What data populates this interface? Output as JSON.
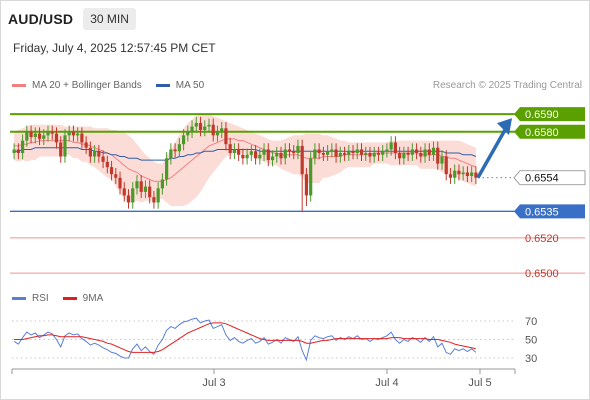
{
  "header": {
    "symbol": "AUD/USD",
    "interval": "30 MIN",
    "datetime": "Friday, July 4, 2025 12:57:45 PM CET"
  },
  "legend": {
    "ma20_label": "MA 20 + Bollinger Bands",
    "ma50_label": "MA 50",
    "ma20_color": "#f08080",
    "ma50_color": "#2f5ea8"
  },
  "copyright": "Research © 2025 Trading Central",
  "rsi_legend": {
    "rsi_label": "RSI",
    "ma9_label": "9MA",
    "rsi_color": "#5b7fd6",
    "ma9_color": "#e02020"
  },
  "colors": {
    "resistance": "#5aa000",
    "support": "#3a6fc7",
    "target": "#f09090",
    "up_candle": "#4a9a2a",
    "down_candle": "#c0392b",
    "bb_fill": "#fbd6d0",
    "arrow": "#2e6bb5"
  },
  "chart_data": [
    {
      "type": "candlestick",
      "title": "AUD/USD",
      "ylim": [
        0.6495,
        0.6598
      ],
      "x_ticks": [
        "Jul 3",
        "Jul 4",
        "Jul 5"
      ],
      "price_levels": [
        {
          "value": "0.6590",
          "price": 0.659,
          "kind": "resistance"
        },
        {
          "value": "0.6580",
          "price": 0.658,
          "kind": "resistance"
        },
        {
          "value": "0.6554",
          "price": 0.6554,
          "kind": "current"
        },
        {
          "value": "0.6535",
          "price": 0.6535,
          "kind": "support"
        },
        {
          "value": "0.6520",
          "price": 0.652,
          "kind": "target"
        },
        {
          "value": "0.6500",
          "price": 0.65,
          "kind": "target"
        }
      ],
      "close": [
        0.657,
        0.6568,
        0.6575,
        0.658,
        0.6577,
        0.6579,
        0.6576,
        0.6578,
        0.658,
        0.6579,
        0.6574,
        0.6566,
        0.6578,
        0.658,
        0.6578,
        0.6579,
        0.6574,
        0.6571,
        0.6566,
        0.6569,
        0.6566,
        0.6563,
        0.656,
        0.6556,
        0.6554,
        0.6548,
        0.6544,
        0.654,
        0.6548,
        0.6552,
        0.6546,
        0.6549,
        0.6543,
        0.654,
        0.6548,
        0.6553,
        0.6565,
        0.657,
        0.6569,
        0.6573,
        0.6578,
        0.658,
        0.6583,
        0.6585,
        0.6581,
        0.6583,
        0.6584,
        0.6578,
        0.658,
        0.6582,
        0.6573,
        0.6568,
        0.657,
        0.6567,
        0.6565,
        0.6567,
        0.6569,
        0.6565,
        0.6567,
        0.657,
        0.6564,
        0.6566,
        0.6568,
        0.6565,
        0.657,
        0.6569,
        0.6568,
        0.6572,
        0.6556,
        0.6544,
        0.6565,
        0.657,
        0.6568,
        0.6567,
        0.6569,
        0.657,
        0.6566,
        0.6568,
        0.6567,
        0.6569,
        0.6568,
        0.657,
        0.6567,
        0.6568,
        0.6566,
        0.6568,
        0.6567,
        0.6569,
        0.657,
        0.6574,
        0.6568,
        0.6565,
        0.6568,
        0.6567,
        0.657,
        0.6568,
        0.6566,
        0.657,
        0.6567,
        0.6571,
        0.6562,
        0.6566,
        0.6556,
        0.6554,
        0.6558,
        0.6556,
        0.6557,
        0.6555,
        0.6557,
        0.6554
      ],
      "ma20": [
        0.6572,
        0.6572,
        0.6573,
        0.6573,
        0.6574,
        0.6574,
        0.6575,
        0.6575,
        0.6575,
        0.6575,
        0.6575,
        0.6575,
        0.6575,
        0.6575,
        0.6574,
        0.6574,
        0.6573,
        0.6573,
        0.6572,
        0.6571,
        0.657,
        0.6569,
        0.6568,
        0.6567,
        0.6565,
        0.6563,
        0.6561,
        0.6559,
        0.6558,
        0.6557,
        0.6555,
        0.6554,
        0.6553,
        0.6552,
        0.6552,
        0.6552,
        0.6553,
        0.6554,
        0.6556,
        0.6558,
        0.656,
        0.6562,
        0.6564,
        0.6566,
        0.6568,
        0.657,
        0.6572,
        0.6573,
        0.6574,
        0.6575,
        0.6576,
        0.6576,
        0.6576,
        0.6575,
        0.6575,
        0.6574,
        0.6573,
        0.6572,
        0.6571,
        0.657,
        0.6569,
        0.6568,
        0.6568,
        0.6567,
        0.6567,
        0.6567,
        0.6567,
        0.6567,
        0.6566,
        0.6565,
        0.6565,
        0.6565,
        0.6565,
        0.6566,
        0.6566,
        0.6566,
        0.6566,
        0.6566,
        0.6567,
        0.6567,
        0.6567,
        0.6567,
        0.6567,
        0.6567,
        0.6567,
        0.6568,
        0.6568,
        0.6568,
        0.6568,
        0.6568,
        0.6568,
        0.6568,
        0.6568,
        0.6568,
        0.6568,
        0.6568,
        0.6567,
        0.6567,
        0.6567,
        0.6567,
        0.6567,
        0.6566,
        0.6566,
        0.6565,
        0.6565,
        0.6564,
        0.6563,
        0.6562,
        0.6561,
        0.656
      ],
      "bb_upper": [
        0.658,
        0.6581,
        0.6582,
        0.6583,
        0.6584,
        0.6584,
        0.6584,
        0.6584,
        0.6584,
        0.6584,
        0.6584,
        0.6584,
        0.6583,
        0.6583,
        0.6583,
        0.6583,
        0.6583,
        0.6583,
        0.6583,
        0.6582,
        0.6582,
        0.6582,
        0.6582,
        0.6581,
        0.6581,
        0.658,
        0.658,
        0.6578,
        0.6576,
        0.6573,
        0.657,
        0.6567,
        0.6565,
        0.6563,
        0.6562,
        0.6562,
        0.6566,
        0.657,
        0.6574,
        0.6578,
        0.6582,
        0.6585,
        0.6587,
        0.6589,
        0.659,
        0.659,
        0.659,
        0.6589,
        0.6588,
        0.6587,
        0.6586,
        0.6585,
        0.6584,
        0.6583,
        0.6582,
        0.6581,
        0.658,
        0.6579,
        0.6578,
        0.6577,
        0.6576,
        0.6575,
        0.6575,
        0.6575,
        0.6576,
        0.6577,
        0.6578,
        0.6578,
        0.6578,
        0.6579,
        0.6579,
        0.6579,
        0.6579,
        0.6578,
        0.6578,
        0.6577,
        0.6576,
        0.6575,
        0.6575,
        0.6574,
        0.6574,
        0.6574,
        0.6574,
        0.6574,
        0.6574,
        0.6574,
        0.6574,
        0.6574,
        0.6574,
        0.6575,
        0.6575,
        0.6575,
        0.6575,
        0.6575,
        0.6575,
        0.6575,
        0.6575,
        0.6575,
        0.6575,
        0.6575,
        0.6575,
        0.6575,
        0.6575,
        0.6575,
        0.6575,
        0.6575,
        0.6574,
        0.6573,
        0.6572,
        0.6571
      ],
      "bb_lower": [
        0.6564,
        0.6563,
        0.6564,
        0.6563,
        0.6564,
        0.6564,
        0.6566,
        0.6566,
        0.6566,
        0.6566,
        0.6566,
        0.6566,
        0.6567,
        0.6567,
        0.6565,
        0.6565,
        0.6563,
        0.6563,
        0.6561,
        0.656,
        0.6558,
        0.6556,
        0.6554,
        0.6553,
        0.6549,
        0.6546,
        0.6542,
        0.654,
        0.654,
        0.6541,
        0.654,
        0.6541,
        0.6541,
        0.6541,
        0.6542,
        0.6542,
        0.654,
        0.6538,
        0.6538,
        0.6538,
        0.6538,
        0.6539,
        0.6541,
        0.6543,
        0.6546,
        0.655,
        0.6554,
        0.6557,
        0.656,
        0.6563,
        0.6566,
        0.6567,
        0.6568,
        0.6567,
        0.6568,
        0.6567,
        0.6566,
        0.6565,
        0.6564,
        0.6563,
        0.6562,
        0.6561,
        0.6561,
        0.6559,
        0.6558,
        0.6557,
        0.6556,
        0.6556,
        0.6554,
        0.6551,
        0.6551,
        0.6551,
        0.6551,
        0.6554,
        0.6554,
        0.6555,
        0.6556,
        0.6557,
        0.6559,
        0.656,
        0.656,
        0.656,
        0.656,
        0.656,
        0.656,
        0.6562,
        0.6562,
        0.6562,
        0.6562,
        0.6561,
        0.6561,
        0.6561,
        0.6561,
        0.6561,
        0.6561,
        0.6561,
        0.6559,
        0.6559,
        0.6559,
        0.6559,
        0.6559,
        0.6557,
        0.6557,
        0.6555,
        0.6555,
        0.6553,
        0.6552,
        0.6551,
        0.655,
        0.6549
      ],
      "ma50": [
        0.6569,
        0.6569,
        0.657,
        0.657,
        0.657,
        0.6571,
        0.6571,
        0.6571,
        0.6571,
        0.6571,
        0.6571,
        0.6571,
        0.6571,
        0.6571,
        0.6571,
        0.6571,
        0.657,
        0.657,
        0.657,
        0.6569,
        0.6569,
        0.6568,
        0.6568,
        0.6567,
        0.6567,
        0.6566,
        0.6566,
        0.6565,
        0.6565,
        0.6565,
        0.6564,
        0.6564,
        0.6564,
        0.6564,
        0.6564,
        0.6564,
        0.6564,
        0.6565,
        0.6565,
        0.6566,
        0.6566,
        0.6567,
        0.6567,
        0.6568,
        0.6568,
        0.6569,
        0.6569,
        0.6569,
        0.657,
        0.657,
        0.657,
        0.657,
        0.657,
        0.657,
        0.657,
        0.657,
        0.657,
        0.657,
        0.6569,
        0.6569,
        0.6569,
        0.6569,
        0.6569,
        0.6569,
        0.6569,
        0.6569,
        0.6569,
        0.6569,
        0.6569,
        0.6569,
        0.6569,
        0.6569,
        0.6569,
        0.6569,
        0.6569,
        0.6569,
        0.6569,
        0.6569,
        0.6569,
        0.6569,
        0.6569,
        0.6569,
        0.6569,
        0.6569,
        0.6569,
        0.6569,
        0.6569,
        0.6569,
        0.6569,
        0.6569,
        0.6569,
        0.6569,
        0.6569,
        0.6569,
        0.6569,
        0.6569,
        0.6569,
        0.6569,
        0.6569,
        0.6569,
        0.6569,
        0.6569,
        0.6568,
        0.6568,
        0.6568,
        0.6568,
        0.6567,
        0.6567,
        0.6567,
        0.6566
      ]
    },
    {
      "type": "line",
      "title": "RSI",
      "ylim": [
        25,
        75
      ],
      "y_ticks": [
        "70",
        "50",
        "30"
      ],
      "series": [
        {
          "name": "RSI",
          "values": [
            48,
            45,
            52,
            58,
            55,
            57,
            52,
            55,
            58,
            56,
            50,
            42,
            54,
            57,
            55,
            56,
            51,
            48,
            44,
            46,
            44,
            41,
            39,
            36,
            35,
            32,
            30,
            30,
            40,
            45,
            38,
            42,
            37,
            34,
            44,
            50,
            60,
            64,
            62,
            66,
            69,
            70,
            72,
            73,
            68,
            70,
            71,
            62,
            64,
            66,
            55,
            49,
            52,
            48,
            46,
            49,
            51,
            46,
            48,
            52,
            45,
            47,
            50,
            46,
            52,
            50,
            48,
            53,
            38,
            28,
            49,
            54,
            52,
            51,
            53,
            54,
            49,
            52,
            50,
            53,
            51,
            54,
            50,
            51,
            48,
            51,
            50,
            52,
            54,
            58,
            50,
            46,
            50,
            48,
            52,
            50,
            47,
            52,
            48,
            53,
            42,
            46,
            36,
            34,
            40,
            38,
            40,
            37,
            40,
            36
          ]
        },
        {
          "name": "9MA",
          "values": [
            50,
            50,
            50,
            51,
            52,
            53,
            54,
            54,
            55,
            55,
            54,
            53,
            53,
            53,
            53,
            53,
            53,
            52,
            51,
            50,
            49,
            48,
            46,
            45,
            43,
            41,
            39,
            37,
            36,
            36,
            36,
            36,
            36,
            36,
            37,
            39,
            42,
            45,
            48,
            51,
            54,
            57,
            59,
            61,
            63,
            65,
            67,
            68,
            68,
            68,
            67,
            65,
            63,
            61,
            59,
            57,
            55,
            53,
            51,
            50,
            49,
            49,
            49,
            49,
            49,
            49,
            49,
            49,
            48,
            46,
            46,
            47,
            48,
            49,
            49,
            50,
            51,
            51,
            51,
            51,
            51,
            51,
            51,
            51,
            51,
            51,
            51,
            51,
            51,
            52,
            52,
            52,
            51,
            51,
            51,
            51,
            51,
            51,
            50,
            50,
            50,
            49,
            48,
            47,
            45,
            44,
            43,
            42,
            41,
            40
          ]
        }
      ]
    }
  ]
}
